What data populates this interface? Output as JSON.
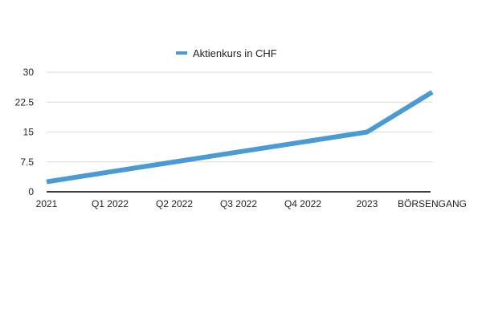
{
  "chart_data": {
    "type": "line",
    "categories": [
      "2021",
      "Q1 2022",
      "Q2 2022",
      "Q3 2022",
      "Q4 2022",
      "2023",
      "BÖRSENGANG"
    ],
    "series": [
      {
        "name": "Aktienkurs in CHF",
        "color": "#4a9ad4",
        "values": [
          2.5,
          5,
          7.5,
          10,
          12.5,
          15,
          25
        ]
      }
    ],
    "yticks": [
      "0",
      "7.5",
      "15",
      "22.5",
      "30"
    ],
    "ylim": [
      0,
      30
    ],
    "grid": true,
    "legend_position": "top-center"
  }
}
